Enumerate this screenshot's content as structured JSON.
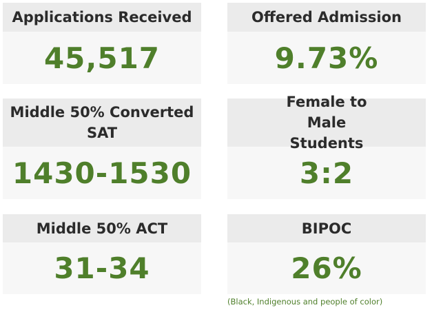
{
  "cards": [
    {
      "label": "Applications Received",
      "value": "45,517"
    },
    {
      "label": "Offered Admission",
      "value": "9.73%"
    },
    {
      "label": "Middle 50% Converted SAT",
      "value": "1430-1530"
    },
    {
      "label": "Female to Male Students",
      "value": "3:2"
    },
    {
      "label": "Middle 50% ACT",
      "value": "31-34"
    },
    {
      "label": "BIPOC",
      "value": "26%"
    }
  ],
  "footnote": "(Black, Indigenous and people of color)",
  "colors": {
    "value_text": "#4f7f2b",
    "header_bg": "#ebebeb",
    "card_bg": "#f7f7f7",
    "header_text": "#2b2b2b"
  }
}
